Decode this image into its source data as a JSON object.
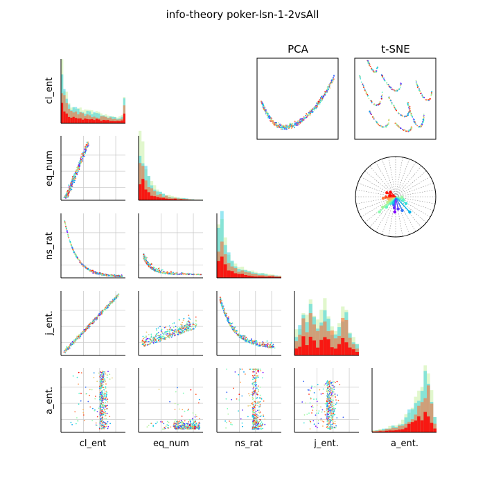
{
  "title": "info-theory poker-lsn-1-2vsAll",
  "variables": [
    "cl_ent",
    "eq_num",
    "ns_rat",
    "j_ent.",
    "a_ent."
  ],
  "panel_titles": {
    "pca": "PCA",
    "tsne": "t-SNE"
  },
  "colors": {
    "grid": "#cccccc",
    "axis": "#000000",
    "rainbow_stops": [
      "#7f00ff",
      "#3f61fa",
      "#00b4ec",
      "#40ecd3",
      "#80ffb4",
      "#c0ec8e",
      "#ffb360",
      "#ff6130",
      "#ff0000"
    ]
  },
  "chart_data": {
    "type": "scatter",
    "kind": "pair-plot matrix (lower triangle scatter, diagonal histograms) with PCA, t-SNE and radial loading panels",
    "title": "info-theory poker-lsn-1-2vsAll",
    "variables": [
      "cl_ent",
      "eq_num",
      "ns_rat",
      "j_ent.",
      "a_ent."
    ],
    "axis_ticks_shown": false,
    "grid": true,
    "color_map": "rainbow (per-point class/order coloring)",
    "scatter_shapes": {
      "eq_num_vs_cl_ent": "dense cluster near low cl_ent, spreading upward",
      "ns_rat_vs_cl_ent": "decreasing curve from top-left to bottom-right",
      "ns_rat_vs_eq_num": "dense cluster at low eq_num with thin tail to the right",
      "j_ent_vs_cl_ent": "strong positive near-linear relation",
      "j_ent_vs_eq_num": "diffuse cloud, weak positive relation",
      "j_ent_vs_ns_rat": "decreasing curve from top-left to bottom-right",
      "a_ent_vs_cl_ent": "vertical band at high cl_ent",
      "a_ent_vs_eq_num": "points concentrated at low a_ent, right side",
      "a_ent_vs_ns_rat": "cluster rising at right",
      "a_ent_vs_j_ent": "dense blob at right, low-to-mid a_ent"
    },
    "histograms": {
      "cl_ent": "tall spike at left, low plateau, small rise at far right",
      "eq_num": "right-skewed, peak near left",
      "ns_rat": "right-skewed, peak near left",
      "j_ent.": "multi-modal, spread across range",
      "a_ent.": "left-skewed, peak near right"
    },
    "pca": "U-shaped cloud",
    "tsne": "several connected curvy clusters",
    "radial_loadings": "spokes of varying length and color radiating from center, ending in dots"
  }
}
